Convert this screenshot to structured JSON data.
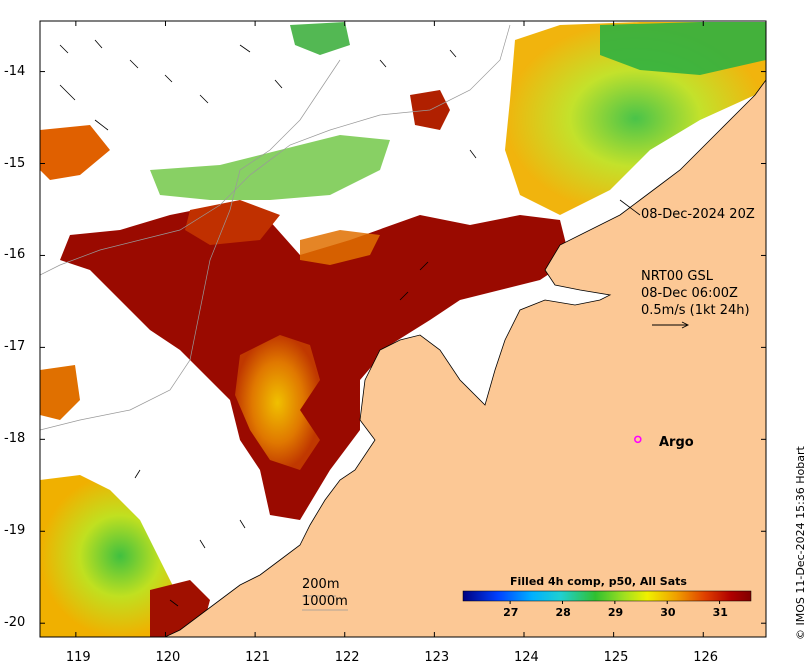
{
  "map": {
    "title_annotation": "08-Dec-2024 20Z",
    "current_info": {
      "line1": "NRT00 GSL",
      "line2": "08-Dec 06:00Z",
      "line3": "0.5m/s (1kt 24h)"
    },
    "argo_label": "Argo",
    "isobaths": {
      "line1": "200m",
      "line2": "1000m"
    },
    "credit": "© IMOS 11-Dec-2024 15:36 Hobart",
    "lon_ticks": [
      "119",
      "120",
      "121",
      "122",
      "123",
      "124",
      "125",
      "126"
    ],
    "lat_ticks": [
      "-14",
      "-15",
      "-16",
      "-17",
      "-18",
      "-19",
      "-20"
    ],
    "lon_range": [
      118.6,
      126.7
    ],
    "lat_range": [
      -20.15,
      -13.45
    ],
    "colorbar": {
      "title": "Filled 4h comp, p50, All Sats",
      "range": [
        26.1,
        31.6
      ],
      "ticks": [
        "27",
        "28",
        "29",
        "30",
        "31"
      ]
    },
    "colors": {
      "land": "#fcc895",
      "coast": "#000000",
      "isobath": "#999999",
      "argo": "#ff00ff",
      "sst_hot": "#9a0a00",
      "sst_warm": "#e08000",
      "sst_mid": "#f0e000",
      "sst_cool": "#40c030"
    },
    "argo_position": {
      "lon": 125.27,
      "lat": -18.0
    }
  }
}
